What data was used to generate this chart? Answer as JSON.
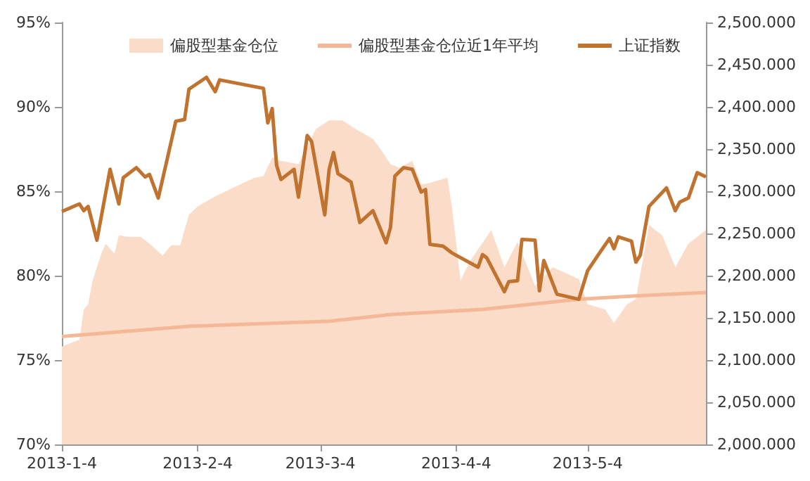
{
  "chart_data": {
    "type": "line",
    "legend": "top",
    "grid": false,
    "xlim": [
      "2013-01-04",
      "2013-05-31"
    ],
    "xticks": [
      {
        "value": "2013-01-04",
        "label": "2013-1-4"
      },
      {
        "value": "2013-02-04",
        "label": "2013-2-4"
      },
      {
        "value": "2013-03-04",
        "label": "2013-3-4"
      },
      {
        "value": "2013-04-04",
        "label": "2013-4-4"
      },
      {
        "value": "2013-05-04",
        "label": "2013-5-4"
      }
    ],
    "ylim": [
      70,
      95
    ],
    "yticks": [
      {
        "value": 70,
        "label": "70%"
      },
      {
        "value": 75,
        "label": "75%"
      },
      {
        "value": 80,
        "label": "80%"
      },
      {
        "value": 85,
        "label": "85%"
      },
      {
        "value": 90,
        "label": "90%"
      },
      {
        "value": 95,
        "label": "95%"
      }
    ],
    "y2lim": [
      2000,
      2500
    ],
    "y2ticks": [
      {
        "value": 2000,
        "label": "2,000.000"
      },
      {
        "value": 2050,
        "label": "2,050.000"
      },
      {
        "value": 2100,
        "label": "2,100.000"
      },
      {
        "value": 2150,
        "label": "2,150.000"
      },
      {
        "value": 2200,
        "label": "2,200.000"
      },
      {
        "value": 2250,
        "label": "2,250.000"
      },
      {
        "value": 2300,
        "label": "2,300.000"
      },
      {
        "value": 2350,
        "label": "2,350.000"
      },
      {
        "value": 2400,
        "label": "2,400.000"
      },
      {
        "value": 2450,
        "label": "2,450.000"
      },
      {
        "value": 2500,
        "label": "2,500.000"
      }
    ],
    "series": [
      {
        "name": "偏股型基金仓位",
        "type": "area",
        "color": "#fbdcc8",
        "x": [
          "2013-01-04",
          "2013-01-07",
          "2013-01-08",
          "2013-01-09",
          "2013-01-10",
          "2013-01-11",
          "2013-01-13",
          "2013-01-14",
          "2013-01-16",
          "2013-01-17",
          "2013-01-19",
          "2013-01-22",
          "2013-01-24",
          "2013-01-27",
          "2013-01-29",
          "2013-01-31",
          "2013-02-02",
          "2013-02-04",
          "2013-02-08",
          "2013-02-12",
          "2013-02-17",
          "2013-02-19",
          "2013-02-21",
          "2013-02-23",
          "2013-02-27",
          "2013-03-01",
          "2013-03-03",
          "2013-03-06",
          "2013-03-09",
          "2013-03-12",
          "2013-03-16",
          "2013-03-18",
          "2013-03-20",
          "2013-03-22",
          "2013-03-25",
          "2013-03-27",
          "2013-03-29",
          "2013-04-02",
          "2013-04-03",
          "2013-04-05",
          "2013-04-07",
          "2013-04-12",
          "2013-04-15",
          "2013-04-18",
          "2013-04-22",
          "2013-04-26",
          "2013-05-02",
          "2013-05-04",
          "2013-05-08",
          "2013-05-10",
          "2013-05-13",
          "2013-05-15",
          "2013-05-18",
          "2013-05-21",
          "2013-05-24",
          "2013-05-27",
          "2013-05-31"
        ],
        "values": [
          75.8,
          76.1,
          76.2,
          78.0,
          78.3,
          79.7,
          81.3,
          81.9,
          81.3,
          82.4,
          82.3,
          82.3,
          81.9,
          81.2,
          81.8,
          81.8,
          83.6,
          84.1,
          84.7,
          85.2,
          85.8,
          85.9,
          87.0,
          86.8,
          86.6,
          87.7,
          88.7,
          89.2,
          89.2,
          88.7,
          88.1,
          87.4,
          86.6,
          86.4,
          86.8,
          85.4,
          85.5,
          85.8,
          84.1,
          79.7,
          80.8,
          82.7,
          80.5,
          82.0,
          79.4,
          80.5,
          79.8,
          78.3,
          78.0,
          77.2,
          78.3,
          78.6,
          83.0,
          82.4,
          80.5,
          81.9,
          82.7
        ]
      },
      {
        "name": "偏股型基金仓位近1年平均",
        "color": "#f4b896",
        "x": [
          "2013-01-04",
          "2013-02-02",
          "2013-03-06",
          "2013-03-20",
          "2013-04-10",
          "2013-05-02",
          "2013-05-15",
          "2013-05-31"
        ],
        "values": [
          76.4,
          77.0,
          77.3,
          77.7,
          78.0,
          78.6,
          78.8,
          79.0
        ]
      },
      {
        "name": "上证指数",
        "axis": "y2",
        "color": "#c0722f",
        "x": [
          "2013-01-04",
          "2013-01-08",
          "2013-01-09",
          "2013-01-10",
          "2013-01-12",
          "2013-01-15",
          "2013-01-17",
          "2013-01-18",
          "2013-01-21",
          "2013-01-23",
          "2013-01-24",
          "2013-01-26",
          "2013-01-29",
          "2013-01-30",
          "2013-02-01",
          "2013-02-02",
          "2013-02-06",
          "2013-02-08",
          "2013-02-09",
          "2013-02-19",
          "2013-02-20",
          "2013-02-21",
          "2013-02-22",
          "2013-02-23",
          "2013-02-26",
          "2013-02-27",
          "2013-03-01",
          "2013-03-02",
          "2013-03-05",
          "2013-03-06",
          "2013-03-07",
          "2013-03-08",
          "2013-03-11",
          "2013-03-13",
          "2013-03-16",
          "2013-03-19",
          "2013-03-20",
          "2013-03-21",
          "2013-03-23",
          "2013-03-25",
          "2013-03-27",
          "2013-03-28",
          "2013-03-29",
          "2013-04-01",
          "2013-04-03",
          "2013-04-09",
          "2013-04-10",
          "2013-04-11",
          "2013-04-15",
          "2013-04-16",
          "2013-04-18",
          "2013-04-19",
          "2013-04-22",
          "2013-04-23",
          "2013-04-24",
          "2013-04-27",
          "2013-05-02",
          "2013-05-04",
          "2013-05-07",
          "2013-05-09",
          "2013-05-10",
          "2013-05-11",
          "2013-05-14",
          "2013-05-15",
          "2013-05-16",
          "2013-05-18",
          "2013-05-22",
          "2013-05-24",
          "2013-05-25",
          "2013-05-27",
          "2013-05-29",
          "2013-05-31"
        ],
        "values": [
          2276,
          2285,
          2277,
          2282,
          2242,
          2326,
          2285,
          2316,
          2328,
          2317,
          2320,
          2292,
          2360,
          2383,
          2385,
          2421,
          2435,
          2418,
          2432,
          2422,
          2381,
          2398,
          2331,
          2314,
          2326,
          2293,
          2366,
          2359,
          2272,
          2326,
          2346,
          2321,
          2311,
          2263,
          2277,
          2239,
          2257,
          2318,
          2328,
          2326,
          2299,
          2302,
          2237,
          2235,
          2227,
          2210,
          2225,
          2221,
          2181,
          2193,
          2194,
          2243,
          2242,
          2182,
          2218,
          2178,
          2172,
          2206,
          2229,
          2244,
          2232,
          2246,
          2241,
          2216,
          2224,
          2282,
          2304,
          2277,
          2287,
          2292,
          2322,
          2317
        ]
      }
    ]
  }
}
